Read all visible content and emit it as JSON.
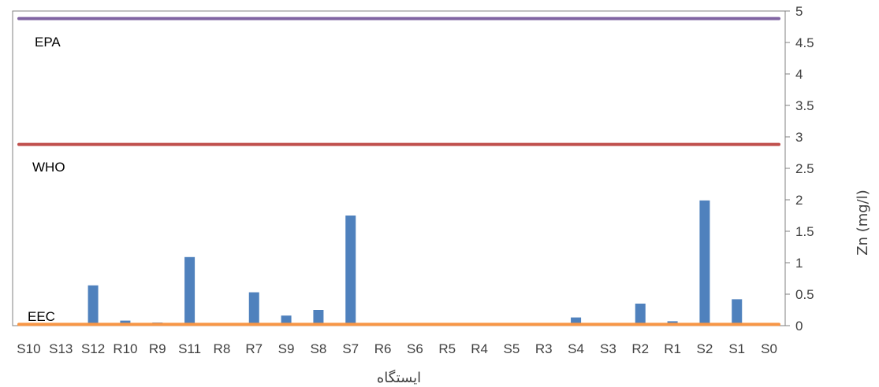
{
  "chart_data": {
    "type": "bar",
    "categories": [
      "S10",
      "S13",
      "S12",
      "R10",
      "R9",
      "S11",
      "R8",
      "R7",
      "S9",
      "S8",
      "S7",
      "R6",
      "S6",
      "R5",
      "R4",
      "S5",
      "R3",
      "S4",
      "S3",
      "R2",
      "R1",
      "S2",
      "S1",
      "S0"
    ],
    "series": [
      {
        "values": [
          0.0,
          0.0,
          0.64,
          0.08,
          0.05,
          1.09,
          0.04,
          0.53,
          0.16,
          0.25,
          1.75,
          0.02,
          0.02,
          0.02,
          0.02,
          0.02,
          0.02,
          0.13,
          0.03,
          0.35,
          0.07,
          1.99,
          0.42,
          0.02
        ]
      }
    ],
    "reference_lines": [
      {
        "name": "EPA",
        "value": 4.88,
        "color": "#8064A2"
      },
      {
        "name": "WHO",
        "value": 2.88,
        "color": "#C0504D"
      },
      {
        "name": "EEC",
        "value": 0.02,
        "color": "#F79646"
      }
    ],
    "ylim": [
      0,
      5
    ],
    "yticks": [
      "0",
      "0.5",
      "1",
      "1.5",
      "2",
      "2.5",
      "3",
      "3.5",
      "4",
      "4.5",
      "5"
    ],
    "y_axis_position": "right",
    "xlabel": "ایستگاه",
    "ylabel": "Zn (mg/l)",
    "grid": false,
    "bar_color": "#4F81BD"
  }
}
